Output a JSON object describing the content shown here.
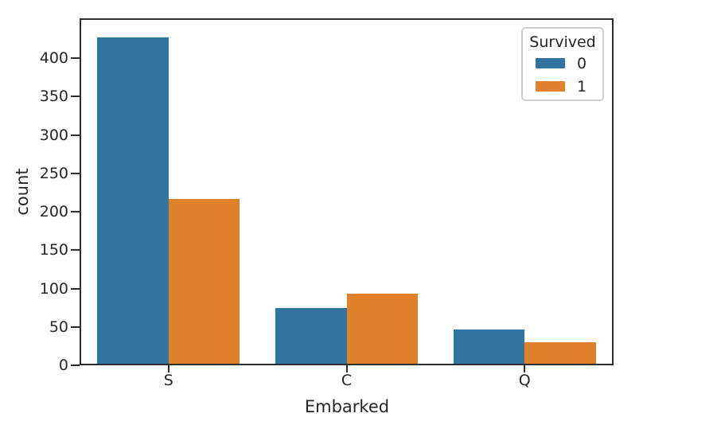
{
  "chart_data": {
    "type": "bar",
    "title": "",
    "categories": [
      "S",
      "C",
      "Q"
    ],
    "series": [
      {
        "name": "0",
        "color": "#3274a1",
        "values": [
          427,
          75,
          47
        ]
      },
      {
        "name": "1",
        "color": "#e1812c",
        "values": [
          217,
          93,
          30
        ]
      }
    ],
    "xlabel": "Embarked",
    "ylabel": "count",
    "legend_title": "Survived",
    "legend_position": "upper right",
    "yticks": [
      0,
      50,
      100,
      150,
      200,
      250,
      300,
      350,
      400
    ],
    "ylim": [
      0,
      452
    ],
    "grid": false,
    "bar_group_width_fraction": 0.8
  },
  "style_colors": {
    "axis_spine": "#2e2e2e",
    "text": "#262626",
    "legend_border": "#cfcfcf",
    "background": "#ffffff"
  }
}
